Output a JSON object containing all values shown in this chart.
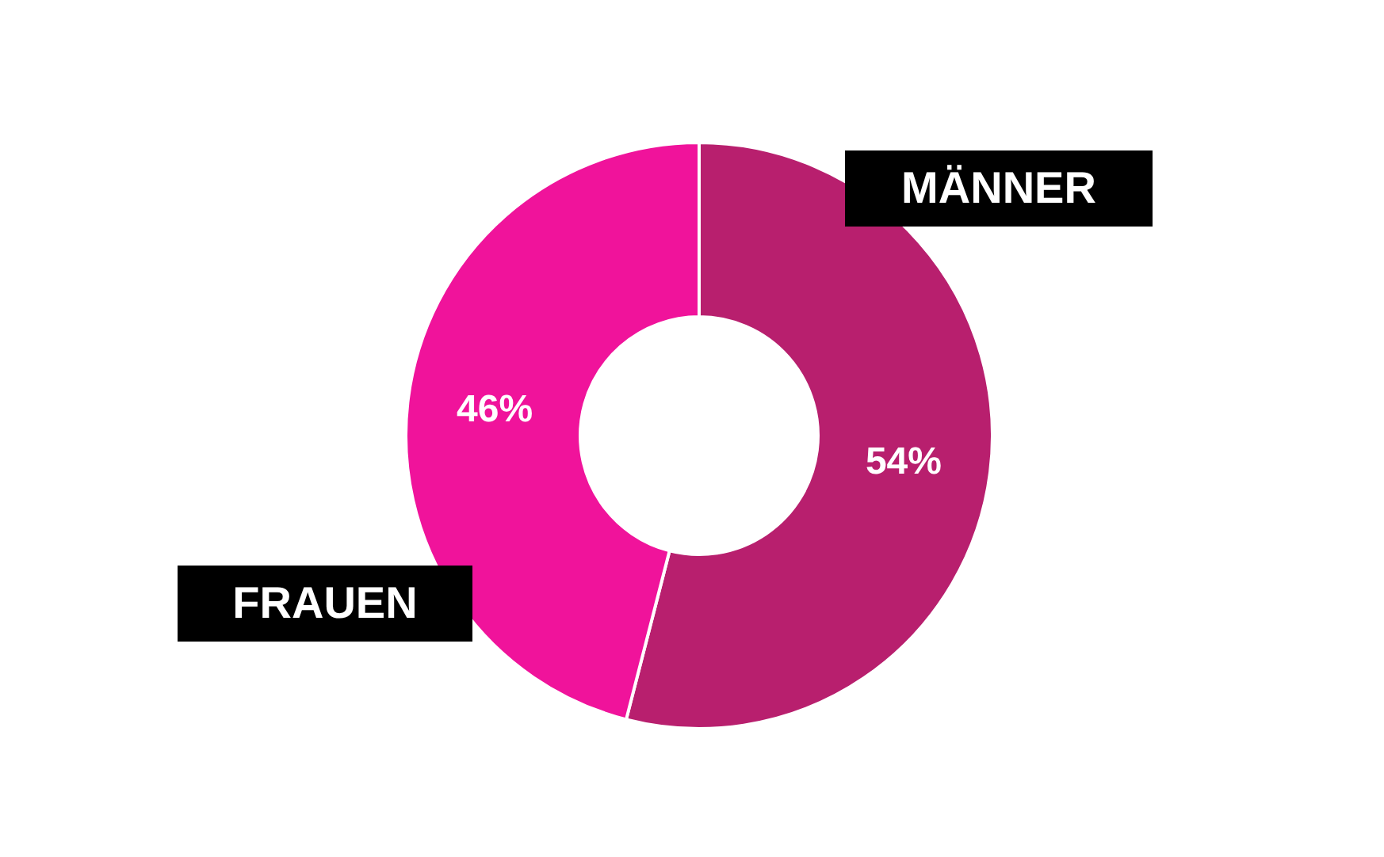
{
  "chart_data": {
    "type": "donut",
    "categories": [
      "MÄNNER",
      "FRAUEN"
    ],
    "values": [
      54,
      46
    ],
    "colors": [
      "#b81f6e",
      "#f0139b"
    ],
    "value_labels": [
      "54%",
      "46%"
    ]
  }
}
